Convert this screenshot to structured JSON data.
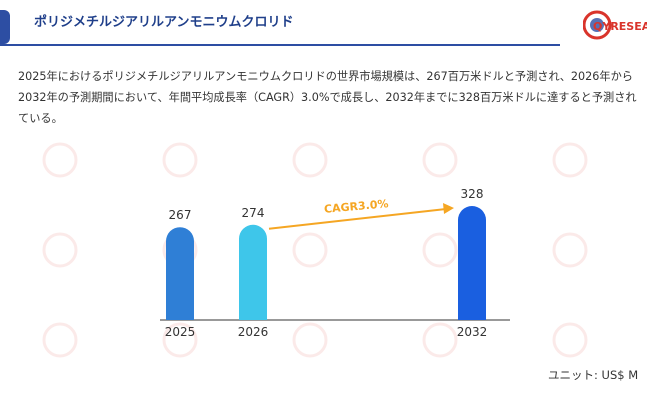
{
  "header": {
    "title": "ポリジメチルジアリルアンモニウムクロリド",
    "logo_text": "QYRESEARCH"
  },
  "description": "2025年におけるポリジメチルジアリルアンモニウムクロリドの世界市場規模は、267百万米ドルと予測され、2026年から2032年の予測期間において、年間平均成長率（CAGR）3.0%で成長し、2032年までに328百万米ドルに達すると予測されている。",
  "chart_data": {
    "type": "bar",
    "categories": [
      "2025",
      "2026",
      "2032"
    ],
    "values": [
      267,
      274,
      328
    ],
    "bar_colors": [
      "#2f7fd6",
      "#3ec6ea",
      "#1a5fe0"
    ],
    "annotation": "CAGR3.0%",
    "annotation_color": "#f5a623",
    "unit": "ユニット: US$ M"
  },
  "colors": {
    "accent": "#2d4ea3",
    "logo_red": "#d9342b"
  }
}
